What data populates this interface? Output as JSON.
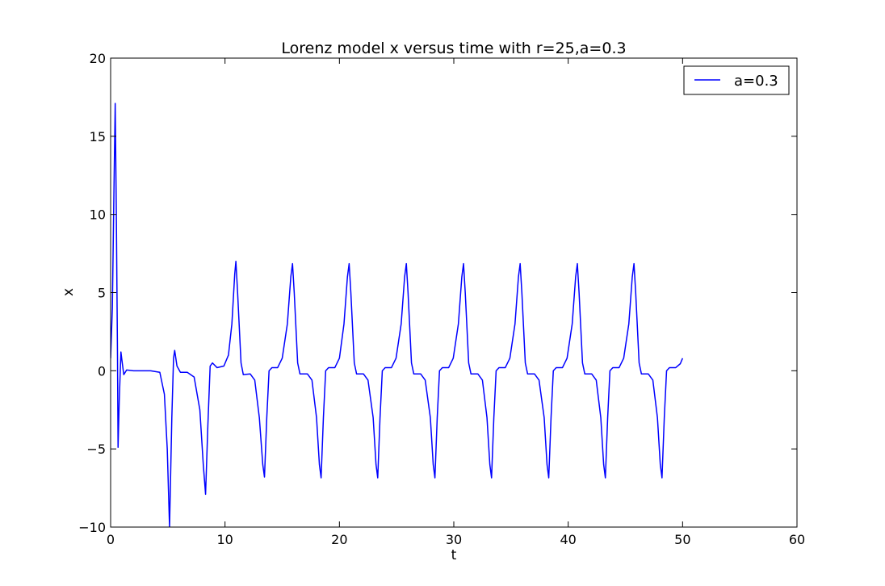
{
  "chart_data": {
    "type": "line",
    "title": "Lorenz model x versus time with r=25,a=0.3",
    "xlabel": "t",
    "ylabel": "x",
    "xlim": [
      0,
      60
    ],
    "ylim": [
      -10,
      20
    ],
    "xticks": [
      "0",
      "10",
      "20",
      "30",
      "40",
      "50",
      "60"
    ],
    "yticks": [
      "−10",
      "−5",
      "0",
      "5",
      "10",
      "15",
      "20"
    ],
    "grid": false,
    "legend_position": "top-right",
    "series": [
      {
        "name": "a=0.3",
        "color": "#0000ff",
        "points": [
          [
            0.0,
            0.8
          ],
          [
            0.15,
            4.0
          ],
          [
            0.3,
            12.0
          ],
          [
            0.4,
            17.1
          ],
          [
            0.5,
            10.0
          ],
          [
            0.6,
            1.0
          ],
          [
            0.65,
            -4.9
          ],
          [
            0.75,
            -2.0
          ],
          [
            0.9,
            1.2
          ],
          [
            1.0,
            0.6
          ],
          [
            1.15,
            -0.25
          ],
          [
            1.4,
            0.05
          ],
          [
            2.0,
            0.0
          ],
          [
            3.5,
            0.0
          ],
          [
            4.3,
            -0.1
          ],
          [
            4.7,
            -1.5
          ],
          [
            4.95,
            -5.0
          ],
          [
            5.15,
            -10.0
          ],
          [
            5.35,
            -3.0
          ],
          [
            5.5,
            0.8
          ],
          [
            5.6,
            1.3
          ],
          [
            5.8,
            0.3
          ],
          [
            6.1,
            -0.1
          ],
          [
            6.7,
            -0.1
          ],
          [
            7.3,
            -0.4
          ],
          [
            7.8,
            -2.5
          ],
          [
            8.1,
            -6.0
          ],
          [
            8.3,
            -7.9
          ],
          [
            8.5,
            -3.5
          ],
          [
            8.7,
            0.3
          ],
          [
            8.9,
            0.5
          ],
          [
            9.3,
            0.2
          ],
          [
            9.9,
            0.3
          ],
          [
            10.3,
            1.0
          ],
          [
            10.6,
            3.0
          ],
          [
            10.85,
            6.2
          ],
          [
            10.95,
            7.0
          ],
          [
            11.1,
            5.0
          ],
          [
            11.4,
            0.5
          ],
          [
            11.6,
            -0.25
          ],
          [
            12.2,
            -0.2
          ],
          [
            12.6,
            -0.6
          ],
          [
            13.0,
            -3.0
          ],
          [
            13.3,
            -6.0
          ],
          [
            13.45,
            -6.8
          ],
          [
            13.65,
            -3.0
          ],
          [
            13.85,
            0.0
          ],
          [
            14.1,
            0.2
          ],
          [
            14.6,
            0.2
          ],
          [
            15.0,
            0.8
          ],
          [
            15.45,
            3.0
          ],
          [
            15.75,
            6.0
          ],
          [
            15.9,
            6.85
          ],
          [
            16.05,
            5.0
          ],
          [
            16.35,
            0.5
          ],
          [
            16.55,
            -0.2
          ],
          [
            17.2,
            -0.2
          ],
          [
            17.6,
            -0.6
          ],
          [
            18.0,
            -3.0
          ],
          [
            18.25,
            -6.0
          ],
          [
            18.4,
            -6.85
          ],
          [
            18.6,
            -3.0
          ],
          [
            18.8,
            0.0
          ],
          [
            19.05,
            0.2
          ],
          [
            19.6,
            0.2
          ],
          [
            20.0,
            0.8
          ],
          [
            20.4,
            3.0
          ],
          [
            20.7,
            6.0
          ],
          [
            20.85,
            6.85
          ],
          [
            21.0,
            5.0
          ],
          [
            21.3,
            0.5
          ],
          [
            21.5,
            -0.2
          ],
          [
            22.1,
            -0.2
          ],
          [
            22.5,
            -0.6
          ],
          [
            22.95,
            -3.0
          ],
          [
            23.2,
            -6.0
          ],
          [
            23.35,
            -6.85
          ],
          [
            23.55,
            -3.0
          ],
          [
            23.75,
            0.0
          ],
          [
            24.0,
            0.2
          ],
          [
            24.55,
            0.2
          ],
          [
            24.95,
            0.8
          ],
          [
            25.4,
            3.0
          ],
          [
            25.7,
            6.0
          ],
          [
            25.85,
            6.85
          ],
          [
            26.0,
            5.0
          ],
          [
            26.3,
            0.5
          ],
          [
            26.5,
            -0.2
          ],
          [
            27.1,
            -0.2
          ],
          [
            27.5,
            -0.6
          ],
          [
            27.95,
            -3.0
          ],
          [
            28.2,
            -6.0
          ],
          [
            28.35,
            -6.85
          ],
          [
            28.55,
            -3.0
          ],
          [
            28.75,
            0.0
          ],
          [
            29.0,
            0.2
          ],
          [
            29.55,
            0.2
          ],
          [
            29.95,
            0.8
          ],
          [
            30.4,
            3.0
          ],
          [
            30.7,
            6.0
          ],
          [
            30.85,
            6.85
          ],
          [
            31.0,
            5.0
          ],
          [
            31.3,
            0.5
          ],
          [
            31.5,
            -0.2
          ],
          [
            32.1,
            -0.2
          ],
          [
            32.5,
            -0.6
          ],
          [
            32.9,
            -3.0
          ],
          [
            33.15,
            -6.0
          ],
          [
            33.3,
            -6.85
          ],
          [
            33.5,
            -3.0
          ],
          [
            33.7,
            0.0
          ],
          [
            33.95,
            0.2
          ],
          [
            34.5,
            0.2
          ],
          [
            34.9,
            0.8
          ],
          [
            35.35,
            3.0
          ],
          [
            35.65,
            6.0
          ],
          [
            35.8,
            6.85
          ],
          [
            35.95,
            5.0
          ],
          [
            36.25,
            0.5
          ],
          [
            36.45,
            -0.2
          ],
          [
            37.05,
            -0.2
          ],
          [
            37.45,
            -0.6
          ],
          [
            37.9,
            -3.0
          ],
          [
            38.15,
            -6.0
          ],
          [
            38.3,
            -6.85
          ],
          [
            38.5,
            -3.0
          ],
          [
            38.7,
            0.0
          ],
          [
            38.95,
            0.2
          ],
          [
            39.5,
            0.2
          ],
          [
            39.9,
            0.8
          ],
          [
            40.35,
            3.0
          ],
          [
            40.65,
            6.0
          ],
          [
            40.8,
            6.85
          ],
          [
            40.95,
            5.0
          ],
          [
            41.25,
            0.5
          ],
          [
            41.45,
            -0.2
          ],
          [
            42.05,
            -0.2
          ],
          [
            42.45,
            -0.6
          ],
          [
            42.85,
            -3.0
          ],
          [
            43.1,
            -6.0
          ],
          [
            43.25,
            -6.85
          ],
          [
            43.45,
            -3.0
          ],
          [
            43.65,
            0.0
          ],
          [
            43.9,
            0.2
          ],
          [
            44.45,
            0.2
          ],
          [
            44.85,
            0.8
          ],
          [
            45.3,
            3.0
          ],
          [
            45.6,
            6.0
          ],
          [
            45.75,
            6.85
          ],
          [
            45.9,
            5.0
          ],
          [
            46.2,
            0.5
          ],
          [
            46.4,
            -0.2
          ],
          [
            47.0,
            -0.2
          ],
          [
            47.4,
            -0.6
          ],
          [
            47.8,
            -3.0
          ],
          [
            48.05,
            -6.0
          ],
          [
            48.2,
            -6.85
          ],
          [
            48.4,
            -3.0
          ],
          [
            48.6,
            0.0
          ],
          [
            48.85,
            0.2
          ],
          [
            49.4,
            0.2
          ],
          [
            49.8,
            0.45
          ],
          [
            50.0,
            0.8
          ]
        ]
      }
    ]
  }
}
